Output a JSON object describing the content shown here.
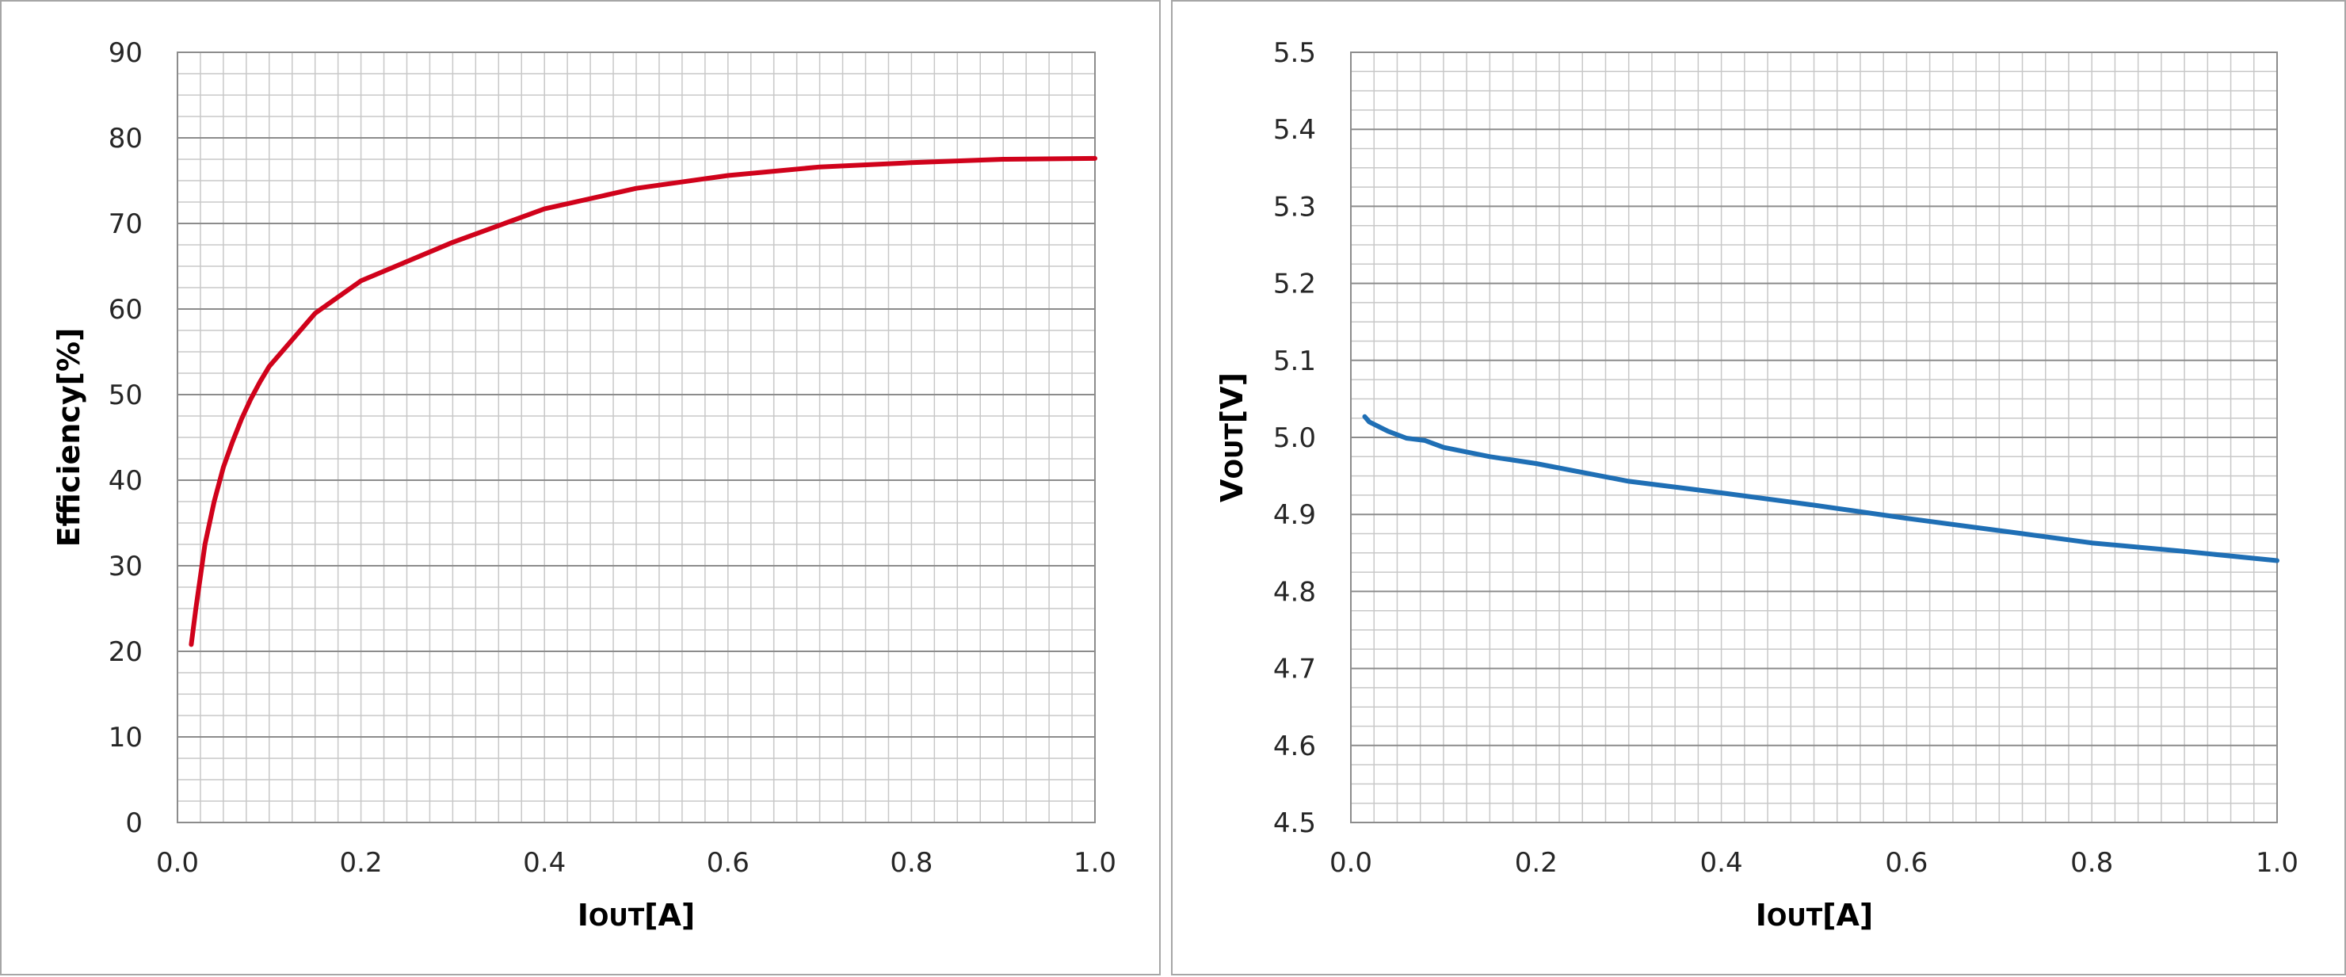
{
  "chart_data": [
    {
      "type": "line",
      "xlabel": {
        "main": "I",
        "sub": "OUT",
        "unit": "[A]"
      },
      "ylabel": {
        "main": "Efficiency[%]",
        "sub": "",
        "unit": ""
      },
      "xlim": [
        0.0,
        1.0
      ],
      "ylim": [
        0,
        90
      ],
      "x_ticks": [
        "0.0",
        "0.2",
        "0.4",
        "0.6",
        "0.8",
        "1.0"
      ],
      "y_ticks": [
        "0",
        "10",
        "20",
        "30",
        "40",
        "50",
        "60",
        "70",
        "80",
        "90"
      ],
      "grid": true,
      "legend": "none",
      "color": "#d0021b",
      "series": [
        {
          "x": [
            0.015,
            0.02,
            0.03,
            0.04,
            0.05,
            0.06,
            0.07,
            0.08,
            0.09,
            0.1,
            0.15,
            0.2,
            0.3,
            0.4,
            0.5,
            0.6,
            0.7,
            0.8,
            0.9,
            1.0
          ],
          "values": [
            20.8,
            25.0,
            32.5,
            37.5,
            41.5,
            44.5,
            47.2,
            49.5,
            51.5,
            53.3,
            59.5,
            63.3,
            67.8,
            71.7,
            74.1,
            75.6,
            76.6,
            77.1,
            77.5,
            77.6
          ]
        }
      ]
    },
    {
      "type": "line",
      "xlabel": {
        "main": "I",
        "sub": "OUT",
        "unit": "[A]"
      },
      "ylabel": {
        "main": "V",
        "sub": "OUT",
        "unit": "[V]"
      },
      "xlim": [
        0.0,
        1.0
      ],
      "ylim": [
        4.5,
        5.5
      ],
      "x_ticks": [
        "0.0",
        "0.2",
        "0.4",
        "0.6",
        "0.8",
        "1.0"
      ],
      "y_ticks": [
        "4.5",
        "4.6",
        "4.7",
        "4.8",
        "4.9",
        "5.0",
        "5.1",
        "5.2",
        "5.3",
        "5.4",
        "5.5"
      ],
      "grid": true,
      "legend": "none",
      "color": "#1f6fb5",
      "series": [
        {
          "x": [
            0.015,
            0.02,
            0.04,
            0.06,
            0.08,
            0.1,
            0.15,
            0.2,
            0.3,
            0.4,
            0.5,
            0.6,
            0.7,
            0.8,
            0.9,
            1.0
          ],
          "values": [
            5.027,
            5.02,
            5.008,
            4.999,
            4.996,
            4.987,
            4.975,
            4.966,
            4.943,
            4.928,
            4.912,
            4.895,
            4.879,
            4.863,
            4.852,
            4.84
          ]
        }
      ]
    }
  ]
}
